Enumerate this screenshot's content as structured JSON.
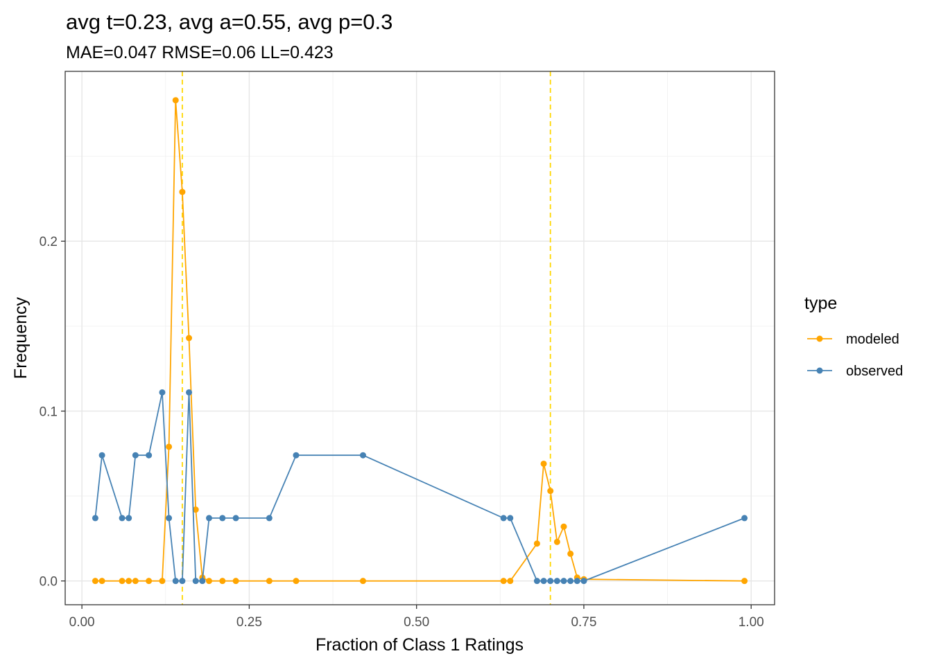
{
  "chart_data": {
    "type": "line",
    "title": "avg t=0.23, avg a=0.55, avg p=0.3",
    "subtitle": "MAE=0.047  RMSE=0.06  LL=0.423",
    "xlabel": "Fraction of Class 1 Ratings",
    "ylabel": "Frequency",
    "xlim": [
      -0.025,
      1.035
    ],
    "ylim": [
      -0.014,
      0.3
    ],
    "x_ticks": [
      0,
      0.25,
      0.5,
      0.75,
      1
    ],
    "x_tick_labels": [
      "0.00",
      "0.25",
      "0.50",
      "0.75",
      "1.00"
    ],
    "y_ticks": [
      0,
      0.1,
      0.2
    ],
    "y_tick_labels": [
      "0.0",
      "0.1",
      "0.2"
    ],
    "grid": true,
    "legend_title": "type",
    "legend_position": "right",
    "vlines": [
      {
        "x": 0.15,
        "color": "#FFD700",
        "style": "dashed"
      },
      {
        "x": 0.7,
        "color": "#FFD700",
        "style": "dashed"
      }
    ],
    "series": [
      {
        "name": "modeled",
        "color": "#FFA500",
        "x": [
          0.02,
          0.03,
          0.06,
          0.07,
          0.08,
          0.1,
          0.12,
          0.13,
          0.14,
          0.15,
          0.16,
          0.17,
          0.18,
          0.19,
          0.21,
          0.23,
          0.28,
          0.32,
          0.42,
          0.63,
          0.64,
          0.68,
          0.69,
          0.7,
          0.71,
          0.72,
          0.73,
          0.74,
          0.75,
          0.99
        ],
        "y": [
          0,
          0,
          0,
          0,
          0,
          0,
          0,
          0.079,
          0.283,
          0.229,
          0.143,
          0.042,
          0.002,
          0,
          0,
          0,
          0,
          0,
          0,
          0,
          0,
          0.022,
          0.069,
          0.053,
          0.023,
          0.032,
          0.016,
          0.002,
          0.001,
          0
        ]
      },
      {
        "name": "observed",
        "color": "#4682B4",
        "x": [
          0.02,
          0.03,
          0.06,
          0.07,
          0.08,
          0.1,
          0.12,
          0.13,
          0.14,
          0.15,
          0.16,
          0.17,
          0.18,
          0.19,
          0.21,
          0.23,
          0.28,
          0.32,
          0.42,
          0.63,
          0.64,
          0.68,
          0.69,
          0.7,
          0.71,
          0.72,
          0.73,
          0.74,
          0.75,
          0.99
        ],
        "y": [
          0.037,
          0.074,
          0.037,
          0.037,
          0.074,
          0.074,
          0.111,
          0.037,
          0,
          0,
          0.111,
          0,
          0,
          0.037,
          0.037,
          0.037,
          0.037,
          0.074,
          0.074,
          0.037,
          0.037,
          0,
          0,
          0,
          0,
          0,
          0,
          0,
          0,
          0.037
        ]
      }
    ]
  }
}
